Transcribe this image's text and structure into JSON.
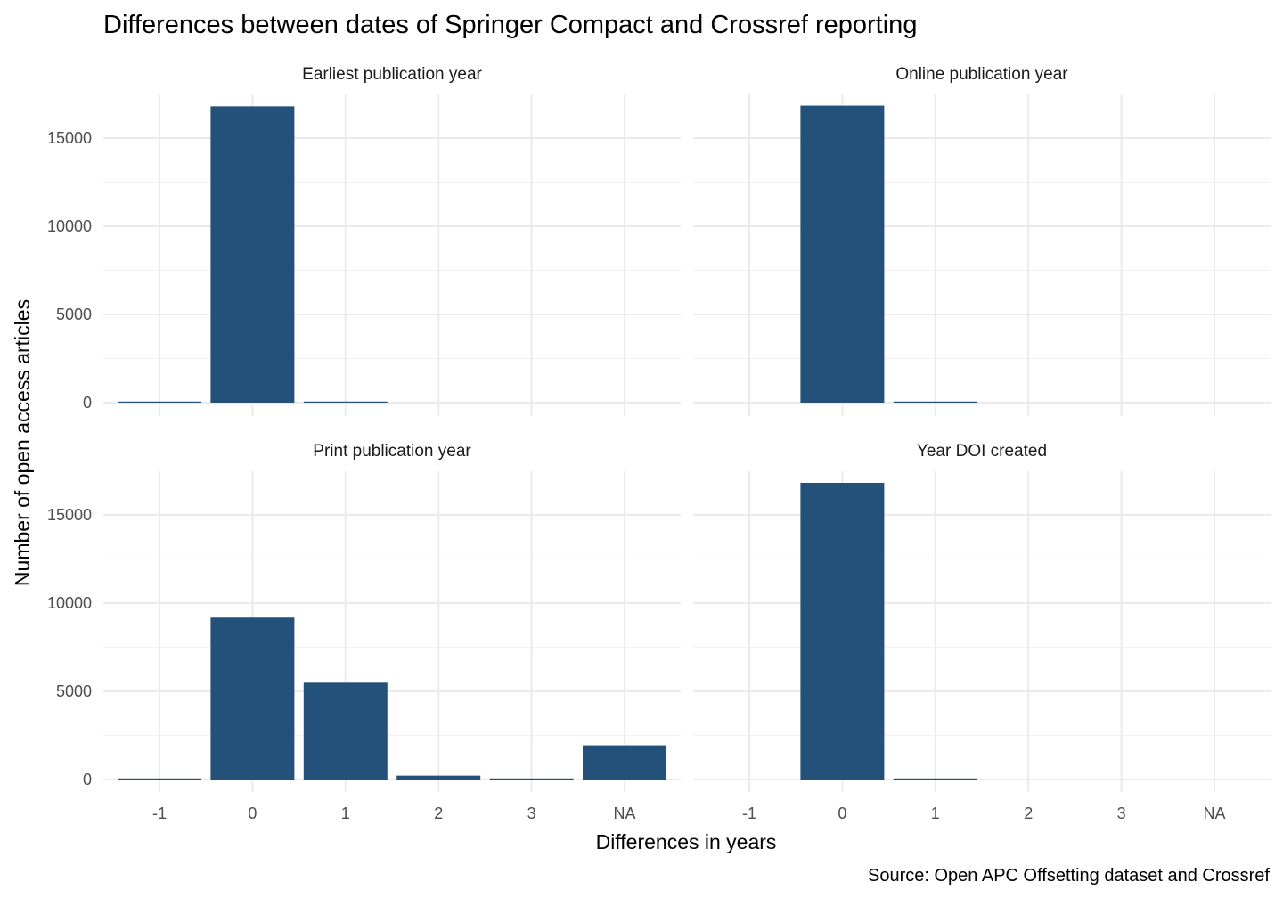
{
  "chart_data": {
    "type": "bar",
    "title": "Differences between dates of Springer Compact and Crossref reporting",
    "xlabel": "Differences in years",
    "ylabel": "Number of open access articles",
    "caption": "Source: Open APC Offsetting dataset and Crossref",
    "categories": [
      "-1",
      "0",
      "1",
      "2",
      "3",
      "NA"
    ],
    "ylim": [
      0,
      17500
    ],
    "yticks": [
      0,
      5000,
      10000,
      15000
    ],
    "grid": true,
    "bar_color": "#23517A",
    "facets": [
      {
        "name": "Earliest publication year",
        "values": [
          20,
          16800,
          30,
          0,
          0,
          0
        ]
      },
      {
        "name": "Online publication year",
        "values": [
          0,
          16840,
          40,
          0,
          0,
          0
        ]
      },
      {
        "name": "Print publication year",
        "values": [
          20,
          9180,
          5490,
          220,
          10,
          1940
        ]
      },
      {
        "name": "Year DOI created",
        "values": [
          0,
          16820,
          40,
          0,
          0,
          0
        ]
      }
    ]
  }
}
